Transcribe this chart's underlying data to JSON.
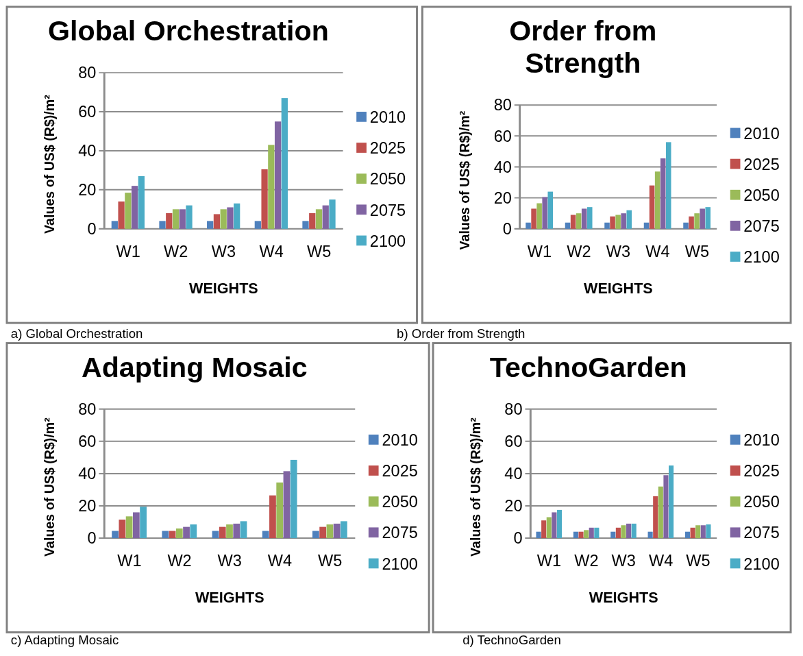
{
  "chart_data": [
    {
      "type": "bar",
      "title": "Global Orchestration",
      "xlabel": "WEIGHTS",
      "ylabel": "Values of US$ (R$)/m²",
      "categories": [
        "W1",
        "W2",
        "W3",
        "W4",
        "W5"
      ],
      "ylim": [
        0,
        80
      ],
      "yticks": [
        0,
        20,
        40,
        60,
        80
      ],
      "grid": "y",
      "legend": "right",
      "annotations": [
        "a) Global Orchestration"
      ],
      "series": [
        {
          "name": "2010",
          "color": "#4f81bd",
          "values": [
            4,
            4,
            4,
            4,
            4
          ]
        },
        {
          "name": "2025",
          "color": "#c0504d",
          "values": [
            14,
            8,
            7.5,
            30.5,
            8
          ]
        },
        {
          "name": "2050",
          "color": "#9bbb59",
          "values": [
            18.5,
            10,
            10,
            43,
            10
          ]
        },
        {
          "name": "2075",
          "color": "#8064a2",
          "values": [
            22,
            10,
            11,
            55,
            12
          ]
        },
        {
          "name": "2100",
          "color": "#4bacc6",
          "values": [
            27,
            12,
            13,
            67,
            15
          ]
        }
      ]
    },
    {
      "type": "bar",
      "title": "Order from Strength",
      "xlabel": "WEIGHTS",
      "ylabel": "Values of US$ (R$)/m²",
      "categories": [
        "W1",
        "W2",
        "W3",
        "W4",
        "W5"
      ],
      "ylim": [
        0,
        80
      ],
      "yticks": [
        0,
        20,
        40,
        60,
        80
      ],
      "grid": "y",
      "legend": "right",
      "annotations": [
        "b) Order from Strength"
      ],
      "series": [
        {
          "name": "2010",
          "color": "#4f81bd",
          "values": [
            4,
            4,
            4,
            4,
            4
          ]
        },
        {
          "name": "2025",
          "color": "#c0504d",
          "values": [
            13,
            9,
            8,
            28,
            8
          ]
        },
        {
          "name": "2050",
          "color": "#9bbb59",
          "values": [
            16.5,
            10,
            9,
            37,
            10
          ]
        },
        {
          "name": "2075",
          "color": "#8064a2",
          "values": [
            20.5,
            13,
            10,
            45.5,
            13
          ]
        },
        {
          "name": "2100",
          "color": "#4bacc6",
          "values": [
            24,
            14,
            12,
            56,
            14
          ]
        }
      ]
    },
    {
      "type": "bar",
      "title": "Adapting Mosaic",
      "xlabel": "WEIGHTS",
      "ylabel": "Values of US$ (R$)/m²",
      "categories": [
        "W1",
        "W2",
        "W3",
        "W4",
        "W5"
      ],
      "ylim": [
        0,
        80
      ],
      "yticks": [
        0,
        20,
        40,
        60,
        80
      ],
      "grid": "y",
      "legend": "right",
      "annotations": [
        "c) Adapting Mosaic"
      ],
      "series": [
        {
          "name": "2010",
          "color": "#4f81bd",
          "values": [
            4.5,
            4.5,
            4.5,
            4.5,
            4.5
          ]
        },
        {
          "name": "2025",
          "color": "#c0504d",
          "values": [
            11.5,
            4.5,
            7,
            26.5,
            7
          ]
        },
        {
          "name": "2050",
          "color": "#9bbb59",
          "values": [
            13.5,
            6,
            8.5,
            34.5,
            8.5
          ]
        },
        {
          "name": "2075",
          "color": "#8064a2",
          "values": [
            16,
            7,
            9,
            41.5,
            9
          ]
        },
        {
          "name": "2100",
          "color": "#4bacc6",
          "values": [
            19.5,
            8.5,
            10.5,
            48.5,
            10.5
          ]
        }
      ]
    },
    {
      "type": "bar",
      "title": "TechnoGarden",
      "xlabel": "WEIGHTS",
      "ylabel": "Values of US$ (R$)/m²",
      "categories": [
        "W1",
        "W2",
        "W3",
        "W4",
        "W5"
      ],
      "ylim": [
        0,
        80
      ],
      "yticks": [
        0,
        20,
        40,
        60,
        80
      ],
      "grid": "y",
      "legend": "right",
      "annotations": [
        "d) TechnoGarden"
      ],
      "series": [
        {
          "name": "2010",
          "color": "#4f81bd",
          "values": [
            4,
            4,
            4,
            4,
            4
          ]
        },
        {
          "name": "2025",
          "color": "#c0504d",
          "values": [
            11,
            4,
            6.5,
            26,
            6.5
          ]
        },
        {
          "name": "2050",
          "color": "#9bbb59",
          "values": [
            13,
            5,
            8,
            32,
            8
          ]
        },
        {
          "name": "2075",
          "color": "#8064a2",
          "values": [
            16,
            6.5,
            9,
            39,
            8
          ]
        },
        {
          "name": "2100",
          "color": "#4bacc6",
          "values": [
            17.5,
            6.5,
            9,
            45,
            8.5
          ]
        }
      ]
    }
  ]
}
